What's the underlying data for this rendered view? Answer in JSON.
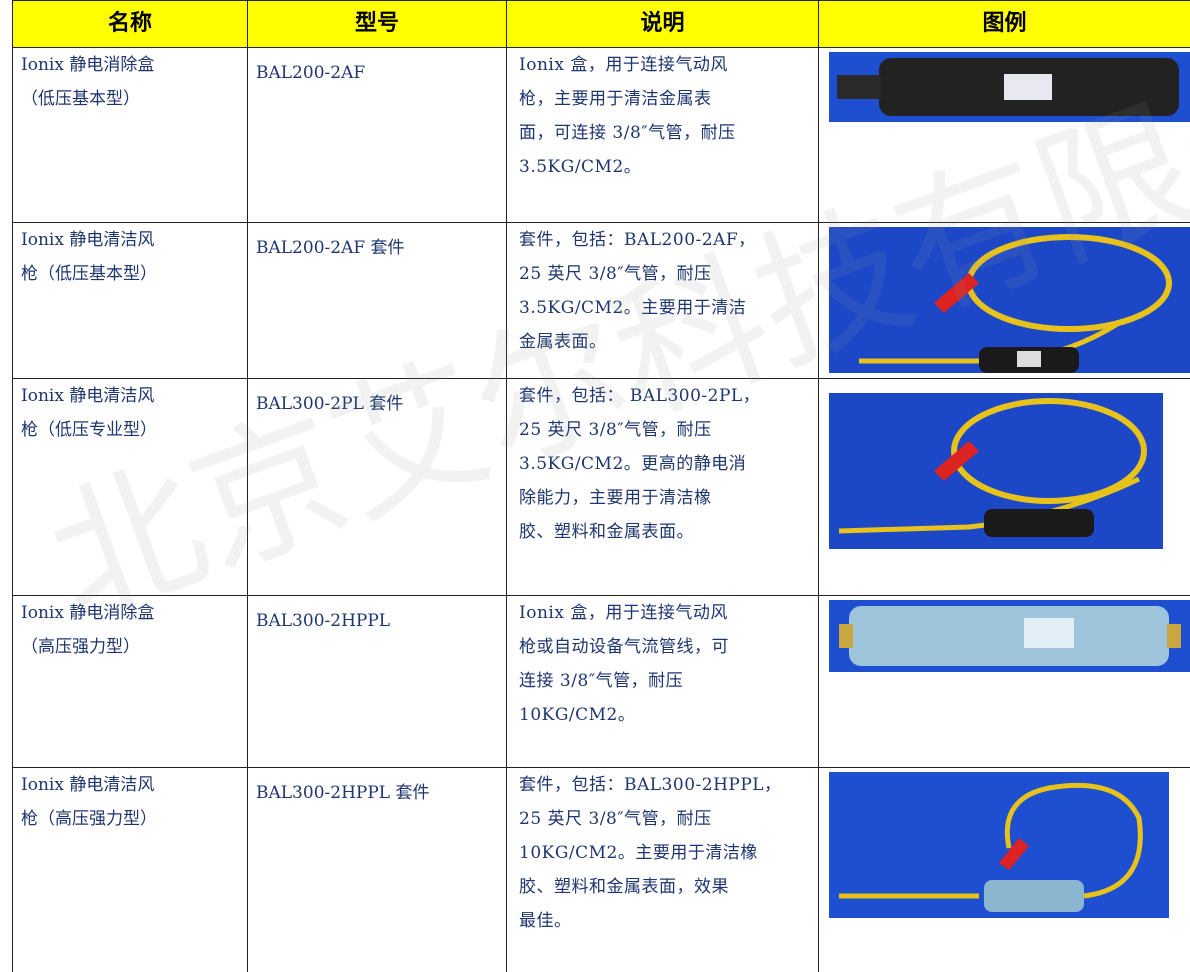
{
  "watermark": "北京艾尔科技有限公司",
  "table": {
    "header": [
      "名称",
      "型号",
      "说明",
      "图例"
    ],
    "rows": [
      {
        "name": [
          "Ionix 静电消除盒",
          "（低压基本型）"
        ],
        "model": "BAL200-2AF",
        "desc": [
          "Ionix 盒，用于连接气动风",
          "枪，主要用于清洁金属表",
          "面，可连接 3/8″气管，耐压",
          "3.5KG/CM2。"
        ]
      },
      {
        "name": [
          "Ionix 静电清洁风",
          "枪（低压基本型）"
        ],
        "model": "BAL200-2AF 套件",
        "desc": [
          "套件，包括：BAL200-2AF，",
          "25 英尺 3/8″气管，耐压",
          "3.5KG/CM2。主要用于清洁",
          "金属表面。"
        ]
      },
      {
        "name": [
          "Ionix 静电清洁风",
          "枪（低压专业型）"
        ],
        "model": "BAL300-2PL 套件",
        "desc": [
          "套件，包括： BAL300-2PL，",
          "25 英尺 3/8″气管，耐压",
          "3.5KG/CM2。更高的静电消",
          "除能力，主要用于清洁橡",
          "胶、塑料和金属表面。"
        ]
      },
      {
        "name": [
          "Ionix 静电消除盒",
          "（高压强力型）"
        ],
        "model": "BAL300-2HPPL",
        "desc": [
          "Ionix 盒，用于连接气动风",
          "枪或自动设备气流管线，可",
          "连接 3/8″气管，耐压",
          "10KG/CM2。"
        ]
      },
      {
        "name": [
          "Ionix 静电清洁风",
          "枪（高压强力型）"
        ],
        "model": "BAL300-2HPPL 套件",
        "desc": [
          "套件，包括：BAL300-2HPPL，",
          "25 英尺 3/8″气管，耐压",
          "10KG/CM2。主要用于清洁橡",
          "胶、塑料和金属表面，效果",
          "最佳。"
        ]
      }
    ]
  }
}
